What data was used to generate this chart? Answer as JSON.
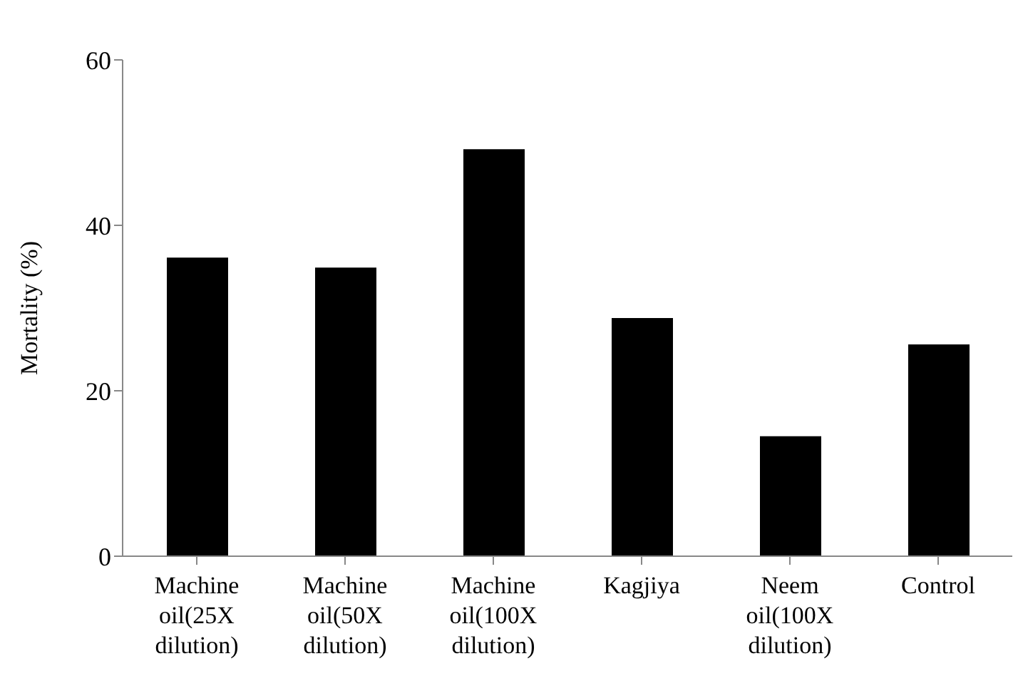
{
  "chart_data": {
    "type": "bar",
    "ylabel": "Mortality (%)",
    "categories": [
      "Machine oil(25X dilution)",
      "Machine oil(50X dilution)",
      "Machine oil(100X dilution)",
      "Kagjiya",
      "Neem oil(100X dilution)",
      "Control"
    ],
    "values": [
      36.1,
      34.9,
      49.2,
      28.8,
      14.5,
      25.6
    ],
    "color": "#000000",
    "ylim": [
      0,
      60
    ],
    "yticks": [
      0,
      20,
      40,
      60
    ],
    "grid": false
  }
}
